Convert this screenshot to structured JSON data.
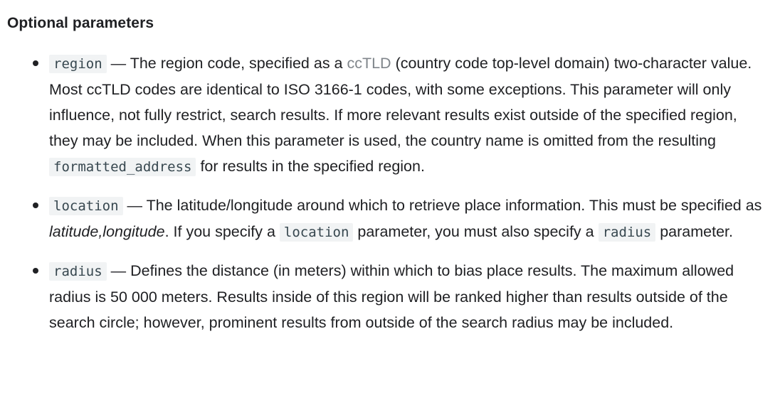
{
  "heading": "Optional parameters",
  "params": [
    {
      "name": "region",
      "t1": " — The region code, specified as a ",
      "link": "ccTLD",
      "t2": " (country code top-level domain) two-character value. Most ccTLD codes are identical to ISO 3166-1 codes, with some exceptions. This parameter will only influence, not fully restrict, search results. If more relevant results exist outside of the specified region, they may be included. When this parameter is used, the country name is omitted from the resulting ",
      "code2": "formatted_address",
      "t3": " for results in the specified region."
    },
    {
      "name": "location",
      "t1": " — The latitude/longitude around which to retrieve place information. This must be specified as ",
      "em": "latitude,longitude",
      "t2": ". If you specify a ",
      "code2": "location",
      "t3": " parameter, you must also specify a ",
      "code3": "radius",
      "t4": " parameter."
    },
    {
      "name": "radius",
      "t1": " — Defines the distance (in meters) within which to bias place results. The maximum allowed radius is 50 000 meters. Results inside of this region will be ranked higher than results outside of the search circle; however, prominent results from outside of the search radius may be included."
    }
  ]
}
